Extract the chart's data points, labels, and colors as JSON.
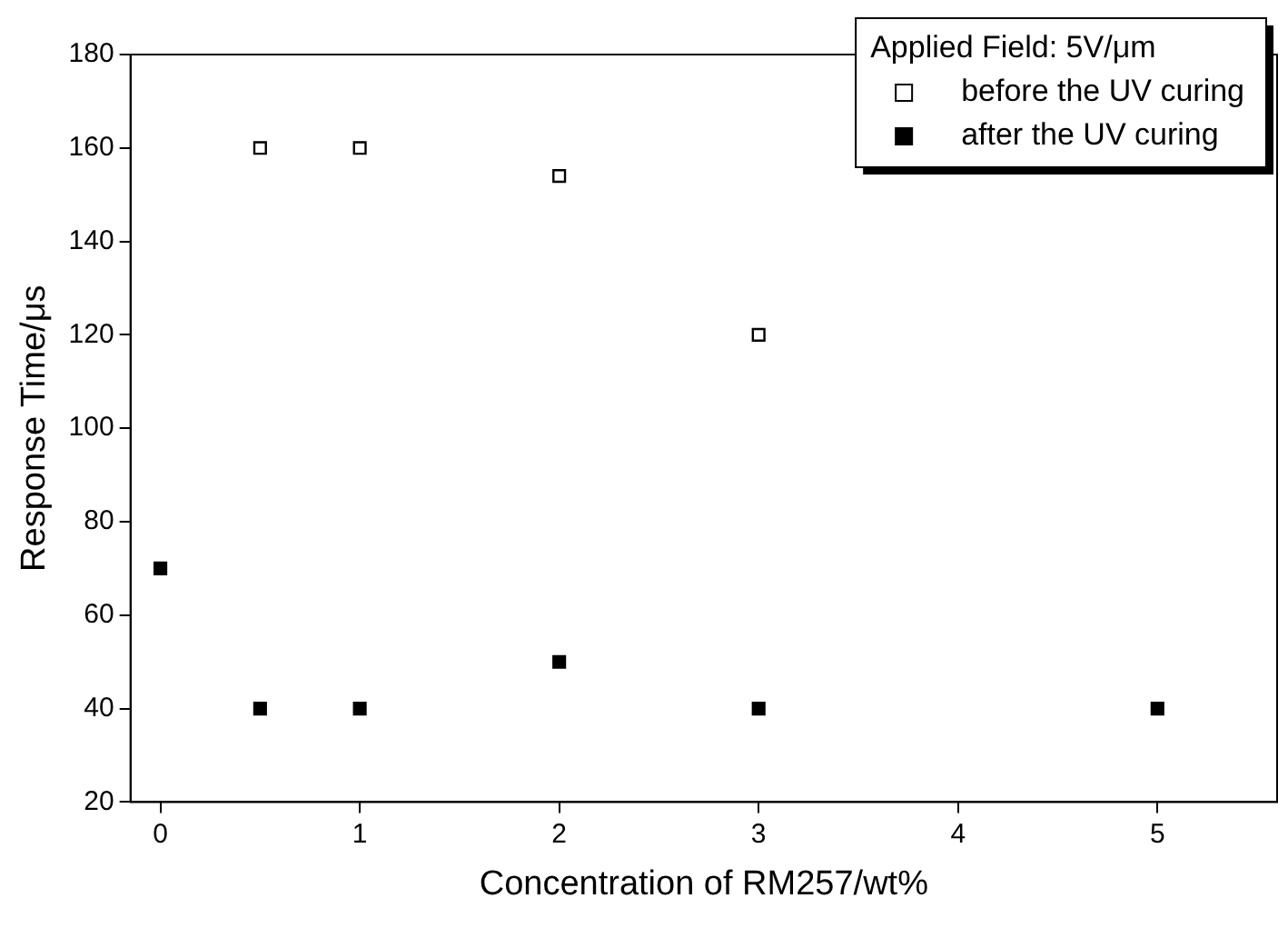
{
  "chart_data": {
    "type": "scatter",
    "xlabel": "Concentration of RM257/wt%",
    "ylabel": "Response Time/μs",
    "legend_title": "Applied Field: 5V/μm",
    "xlim": [
      -0.15,
      5.6
    ],
    "xticks": [
      0,
      1,
      2,
      3,
      4,
      5
    ],
    "ylim": [
      20,
      180
    ],
    "yticks": [
      20,
      40,
      60,
      80,
      100,
      120,
      140,
      160,
      180
    ],
    "grid": false,
    "legend": "top right",
    "marker": "square",
    "series": [
      {
        "name": "before the UV curing",
        "color": "#ffffff",
        "x": [
          0.5,
          1,
          2,
          3
        ],
        "values": [
          160,
          160,
          154,
          120
        ]
      },
      {
        "name": "after the UV curing",
        "color": "#000000",
        "x": [
          0,
          0.5,
          1,
          2,
          3,
          5
        ],
        "values": [
          70,
          40,
          40,
          50,
          40,
          40
        ]
      }
    ]
  }
}
